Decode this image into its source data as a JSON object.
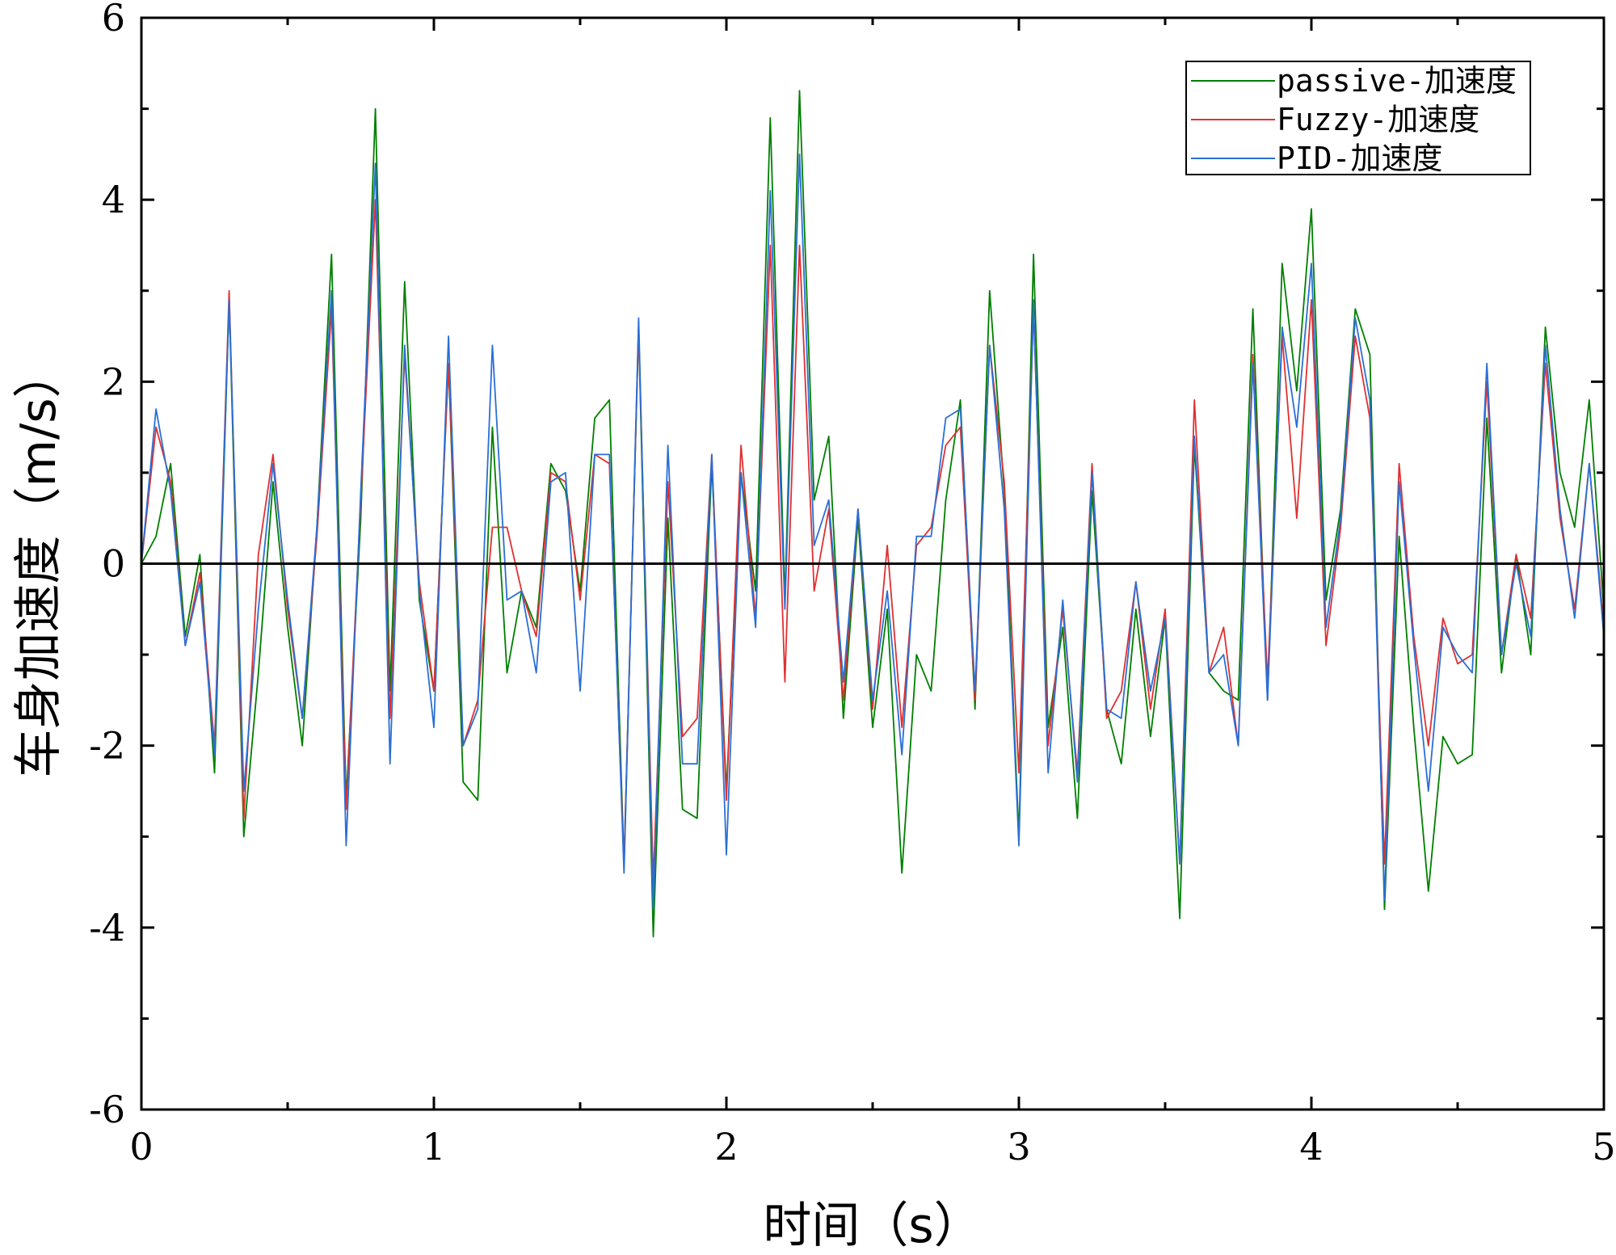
{
  "chart_data": {
    "type": "line",
    "title": "",
    "xlabel": "时间（s）",
    "ylabel": "车身加速度（m/s）",
    "xlim": [
      0,
      5
    ],
    "ylim": [
      -6,
      6
    ],
    "xticks": [
      0,
      1,
      2,
      3,
      4,
      5
    ],
    "yticks": [
      -6,
      -4,
      -2,
      0,
      2,
      4,
      6
    ],
    "xtick_labels": [
      "0",
      "1",
      "2",
      "3",
      "4",
      "5"
    ],
    "ytick_labels": [
      "-6",
      "-4",
      "-2",
      "0",
      "2",
      "4",
      "6"
    ],
    "grid": false,
    "legend_position": "top-right",
    "x": [
      0,
      0.05,
      0.1,
      0.15,
      0.2,
      0.25,
      0.3,
      0.35,
      0.4,
      0.45,
      0.5,
      0.55,
      0.6,
      0.65,
      0.7,
      0.75,
      0.8,
      0.85,
      0.9,
      0.95,
      1,
      1.05,
      1.1,
      1.15,
      1.2,
      1.25,
      1.3,
      1.35,
      1.4,
      1.45,
      1.5,
      1.55,
      1.6,
      1.65,
      1.7,
      1.75,
      1.8,
      1.85,
      1.9,
      1.95,
      2,
      2.05,
      2.1,
      2.15,
      2.2,
      2.25,
      2.3,
      2.35,
      2.4,
      2.45,
      2.5,
      2.55,
      2.6,
      2.65,
      2.7,
      2.75,
      2.8,
      2.85,
      2.9,
      2.95,
      3,
      3.05,
      3.1,
      3.15,
      3.2,
      3.25,
      3.3,
      3.35,
      3.4,
      3.45,
      3.5,
      3.55,
      3.6,
      3.65,
      3.7,
      3.75,
      3.8,
      3.85,
      3.9,
      3.95,
      4,
      4.05,
      4.1,
      4.15,
      4.2,
      4.25,
      4.3,
      4.35,
      4.4,
      4.45,
      4.5,
      4.55,
      4.6,
      4.65,
      4.7,
      4.75,
      4.8,
      4.85,
      4.9,
      4.95,
      5
    ],
    "series": [
      {
        "name": "passive-加速度",
        "color": "#007f00",
        "values": [
          0,
          0.3,
          1.1,
          -0.8,
          0.1,
          -2.3,
          2.9,
          -3.0,
          -1.2,
          0.9,
          -0.7,
          -2.0,
          0.4,
          3.4,
          -2.6,
          0.5,
          5.0,
          -1.4,
          3.1,
          -0.4,
          -1.4,
          2.2,
          -2.4,
          -2.6,
          1.5,
          -1.2,
          -0.3,
          -0.7,
          1.1,
          0.8,
          -0.3,
          1.6,
          1.8,
          -3.3,
          2.6,
          -4.1,
          0.5,
          -2.7,
          -2.8,
          1.1,
          -2.5,
          1.0,
          -0.3,
          4.9,
          -0.4,
          5.2,
          0.7,
          1.4,
          -1.7,
          0.5,
          -1.8,
          -0.5,
          -3.4,
          -1.0,
          -1.4,
          0.7,
          1.8,
          -1.6,
          3.0,
          0.8,
          -3.0,
          3.4,
          -1.8,
          -0.7,
          -2.8,
          0.8,
          -1.6,
          -2.2,
          -0.5,
          -1.9,
          -0.6,
          -3.9,
          1.3,
          -1.2,
          -1.4,
          -1.5,
          2.8,
          -1.5,
          3.3,
          1.9,
          3.9,
          -0.4,
          0.6,
          2.8,
          2.3,
          -3.8,
          0.3,
          -1.8,
          -3.6,
          -1.9,
          -2.2,
          -2.1,
          1.6,
          -1.2,
          0.1,
          -1.0,
          2.6,
          1.0,
          0.4,
          1.8,
          -0.5
        ]
      },
      {
        "name": "Fuzzy-加速度",
        "color": "#e03030",
        "values": [
          0,
          1.5,
          0.9,
          -0.9,
          -0.1,
          -2.0,
          3.0,
          -2.8,
          0.1,
          1.2,
          -0.5,
          -1.7,
          0.3,
          2.8,
          -2.7,
          0.7,
          4.0,
          -1.7,
          2.3,
          -0.2,
          -1.4,
          2.2,
          -2.0,
          -1.5,
          0.4,
          0.4,
          -0.3,
          -0.8,
          1.0,
          0.9,
          -0.4,
          1.2,
          1.1,
          -3.3,
          2.6,
          -3.5,
          0.9,
          -1.9,
          -1.7,
          1.2,
          -2.6,
          1.3,
          -0.6,
          3.5,
          -1.3,
          3.5,
          -0.3,
          0.6,
          -1.5,
          0.6,
          -1.6,
          0.2,
          -1.8,
          0.2,
          0.4,
          1.3,
          1.5,
          -1.5,
          2.4,
          0.9,
          -2.3,
          2.8,
          -2.0,
          -0.5,
          -2.3,
          1.1,
          -1.7,
          -1.4,
          -0.2,
          -1.6,
          -0.5,
          -3.3,
          1.8,
          -1.2,
          -0.7,
          -2.0,
          2.3,
          -1.3,
          2.5,
          0.5,
          2.9,
          -0.9,
          0.4,
          2.5,
          1.6,
          -3.3,
          1.1,
          -0.8,
          -2.0,
          -0.6,
          -1.1,
          -1.0,
          2.0,
          -1.0,
          0.1,
          -0.6,
          2.2,
          0.5,
          -0.5,
          1.1,
          -0.7
        ]
      },
      {
        "name": "PID-加速度",
        "color": "#2a6fd6",
        "values": [
          0,
          1.7,
          0.8,
          -0.9,
          -0.2,
          -2.1,
          2.9,
          -2.5,
          -0.5,
          1.1,
          -0.4,
          -1.7,
          0.4,
          3.0,
          -3.1,
          0.8,
          4.4,
          -2.2,
          2.4,
          -0.3,
          -1.8,
          2.5,
          -2.0,
          -1.6,
          2.4,
          -0.4,
          -0.3,
          -1.2,
          0.9,
          1.0,
          -1.4,
          1.2,
          1.2,
          -3.4,
          2.7,
          -3.8,
          1.3,
          -2.2,
          -2.2,
          1.2,
          -3.2,
          1.0,
          -0.7,
          4.1,
          -0.5,
          4.5,
          0.2,
          0.7,
          -1.3,
          0.6,
          -1.5,
          -0.3,
          -2.1,
          0.3,
          0.3,
          1.6,
          1.7,
          -1.4,
          2.4,
          0.6,
          -3.1,
          2.9,
          -2.3,
          -0.4,
          -2.4,
          1.0,
          -1.6,
          -1.7,
          -0.2,
          -1.4,
          -0.6,
          -3.3,
          1.4,
          -1.2,
          -1.0,
          -2.0,
          2.2,
          -1.5,
          2.6,
          1.5,
          3.3,
          -0.7,
          0.5,
          2.7,
          1.8,
          -3.7,
          0.9,
          -0.9,
          -2.5,
          -0.7,
          -1.0,
          -1.2,
          2.2,
          -1.0,
          0.0,
          -0.8,
          2.4,
          0.6,
          -0.6,
          1.1,
          -0.8
        ]
      }
    ]
  }
}
